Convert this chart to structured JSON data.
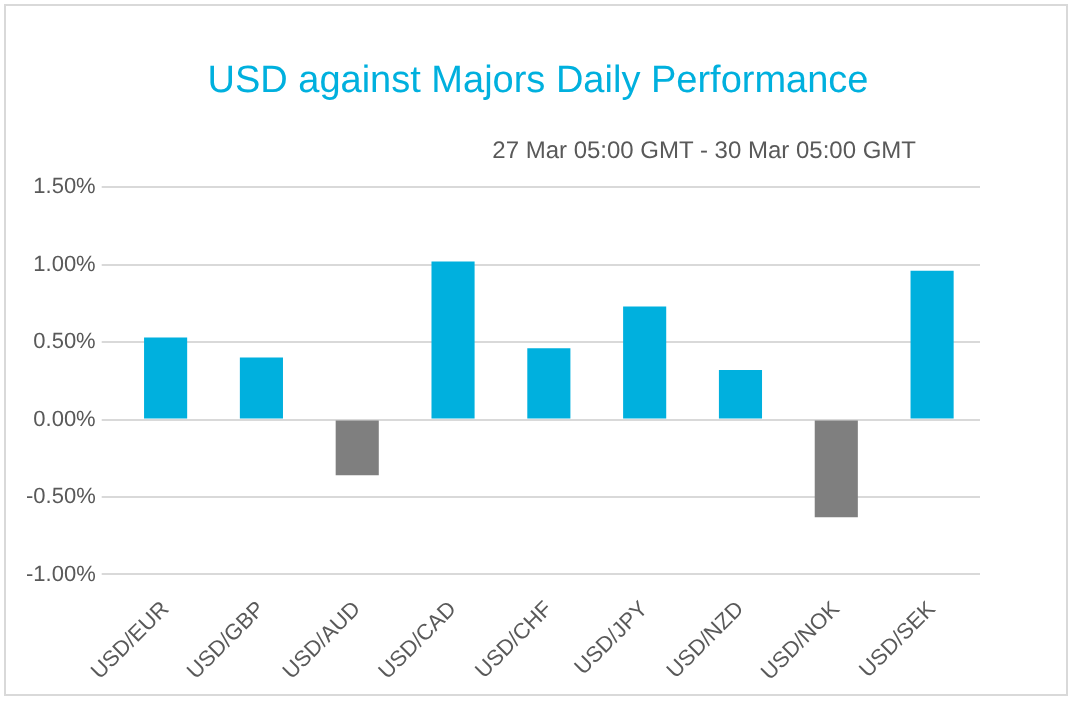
{
  "chart_data": {
    "type": "bar",
    "title": "USD against Majors Daily Performance",
    "subtitle": "27 Mar 05:00 GMT - 30 Mar  05:00 GMT",
    "categories": [
      "USD/EUR",
      "USD/GBP",
      "USD/AUD",
      "USD/CAD",
      "USD/CHF",
      "USD/JPY",
      "USD/NZD",
      "USD/NOK",
      "USD/SEK"
    ],
    "values": [
      0.53,
      0.4,
      -0.36,
      1.02,
      0.46,
      0.73,
      0.32,
      -0.63,
      0.96
    ],
    "colors": [
      "#00b0de",
      "#00b0de",
      "#7f7f7f",
      "#00b0de",
      "#00b0de",
      "#00b0de",
      "#00b0de",
      "#7f7f7f",
      "#00b0de"
    ],
    "ylim": [
      -1,
      1.5
    ],
    "yticks": [
      {
        "value": -1,
        "label": "-1.00%"
      },
      {
        "value": -0.5,
        "label": "-0.50%"
      },
      {
        "value": 0,
        "label": "0.00%"
      },
      {
        "value": 0.5,
        "label": "0.50%"
      },
      {
        "value": 1,
        "label": "1.00%"
      },
      {
        "value": 1.5,
        "label": "1.50%"
      }
    ],
    "grid": "y",
    "legend": false
  }
}
